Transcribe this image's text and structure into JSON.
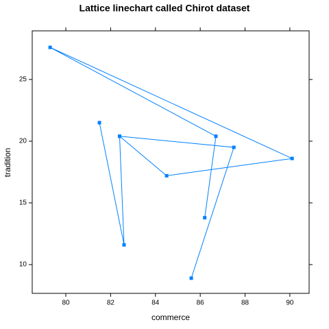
{
  "chart_data": {
    "type": "line",
    "title": "Lattice linechart called Chirot dataset",
    "x_label": "commerce",
    "y_label": "tradition",
    "series": [
      {
        "color": "#0080ff",
        "x": [
          81.5,
          82.6,
          82.4,
          84.5,
          90.1,
          79.3,
          86.7,
          86.2,
          null,
          82.4,
          87.5,
          85.6
        ],
        "values": [
          21.5,
          11.6,
          20.4,
          17.2,
          18.6,
          27.6,
          20.4,
          13.8,
          null,
          20.4,
          19.5,
          8.9
        ]
      }
    ],
    "xlim": [
      78.5,
      90.86
    ],
    "xticks": [
      80,
      82,
      84,
      86,
      88,
      90
    ],
    "ylim": [
      7.67,
      28.94
    ],
    "yticks": [
      10,
      15,
      20,
      25
    ]
  }
}
